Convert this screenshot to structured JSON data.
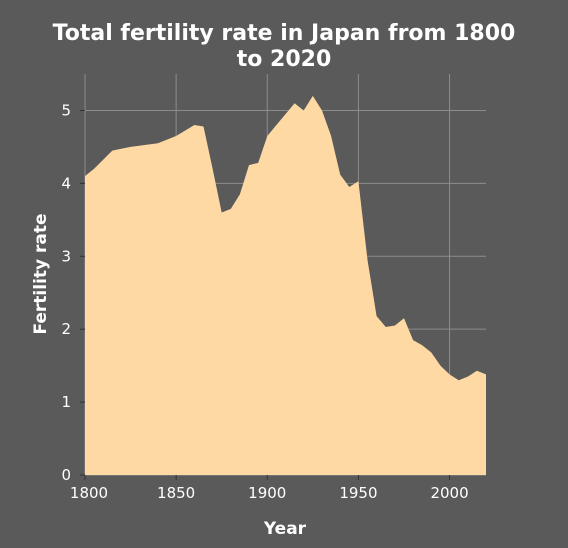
{
  "chart_data": {
    "type": "area",
    "title": [
      "Total fertility rate in Japan from 1800",
      "to 2020"
    ],
    "xlabel": "Year",
    "ylabel": "Fertility rate",
    "xlim": [
      1800,
      2020
    ],
    "ylim": [
      0,
      5.5
    ],
    "xticks": [
      1800,
      1850,
      1900,
      1950,
      2000
    ],
    "yticks": [
      0,
      1,
      2,
      3,
      4,
      5
    ],
    "grid": true,
    "fill_color": "#ffd9a3",
    "background_color": "#5a5a5a",
    "plot_background_color": "#5a5a5a",
    "grid_color": "#8c8c8c",
    "x": [
      1800,
      1805,
      1815,
      1825,
      1840,
      1850,
      1860,
      1865,
      1870,
      1875,
      1880,
      1885,
      1890,
      1895,
      1900,
      1905,
      1910,
      1915,
      1920,
      1925,
      1930,
      1935,
      1940,
      1945,
      1950,
      1955,
      1960,
      1965,
      1970,
      1975,
      1980,
      1985,
      1990,
      1995,
      2000,
      2005,
      2010,
      2015,
      2020
    ],
    "values": [
      4.1,
      4.2,
      4.45,
      4.5,
      4.55,
      4.65,
      4.8,
      4.78,
      4.2,
      3.6,
      3.65,
      3.85,
      4.25,
      4.28,
      4.65,
      4.8,
      4.95,
      5.1,
      5.0,
      5.2,
      5.0,
      4.65,
      4.12,
      3.95,
      4.03,
      2.95,
      2.18,
      2.03,
      2.05,
      2.15,
      1.85,
      1.78,
      1.68,
      1.5,
      1.38,
      1.3,
      1.35,
      1.43,
      1.38
    ]
  }
}
